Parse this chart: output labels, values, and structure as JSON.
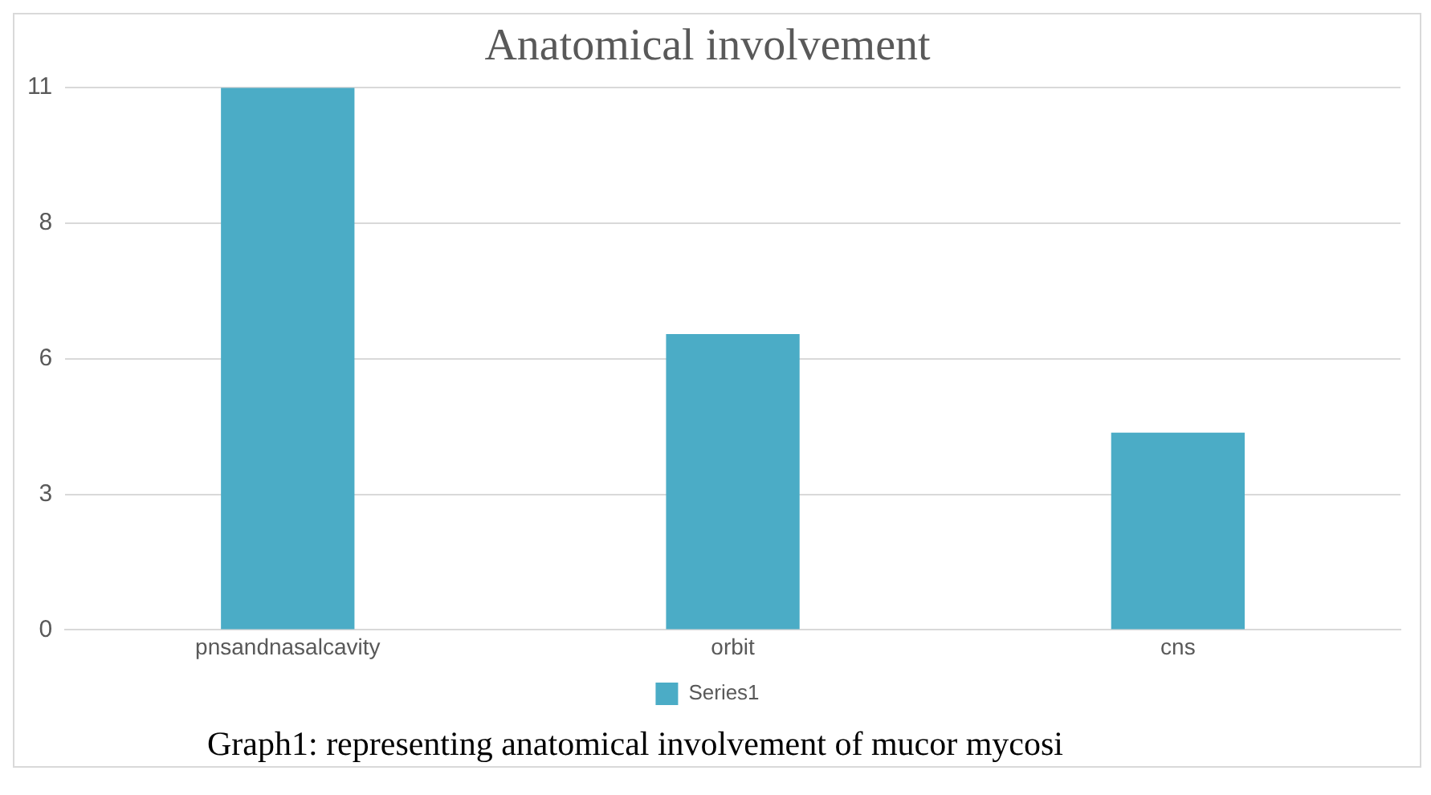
{
  "chart_data": {
    "type": "bar",
    "title": "Anatomical involvement",
    "categories": [
      "pnsandnasalcavity",
      "orbit",
      "cns"
    ],
    "series": [
      {
        "name": "Series1",
        "color": "#4bacc6",
        "values": [
          11,
          6,
          4
        ]
      }
    ],
    "ylim": [
      0,
      11
    ],
    "yticks": [
      0,
      {
        "value": 2.75,
        "label": "3"
      },
      {
        "value": 5.5,
        "label": "6"
      },
      {
        "value": 8.25,
        "label": "8"
      },
      11
    ],
    "grid": "y",
    "legend": "bottom",
    "annotations": [
      "Graph1: representing anatomical involvement of mucor mycosi"
    ]
  }
}
